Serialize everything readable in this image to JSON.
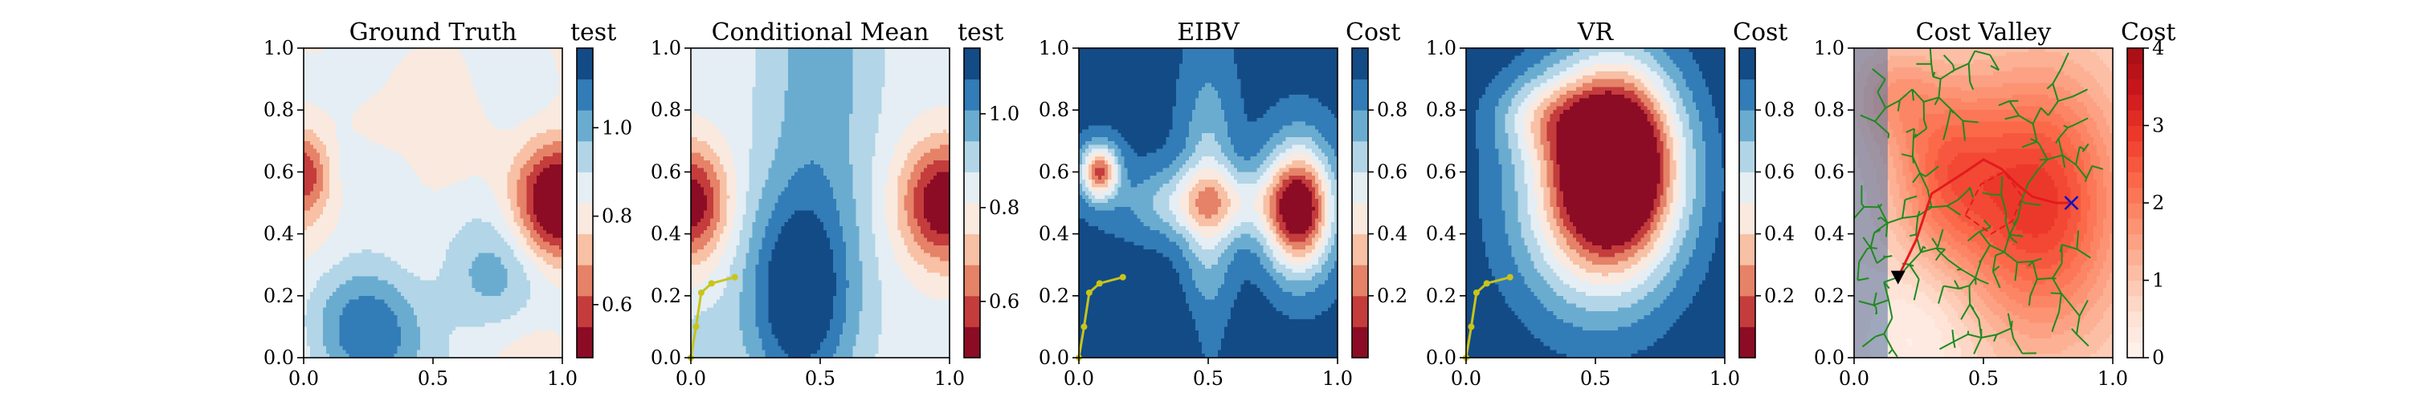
{
  "figure": {
    "panels": [
      {
        "title": "Ground Truth",
        "colorbar_title": "test",
        "colorbar_ticks": [
          "0.6",
          "0.8",
          "1.0"
        ],
        "colorbar_tick_values": [
          0.6,
          0.8,
          1.0
        ],
        "colorbar_range": [
          0.48,
          1.18
        ],
        "colormap": "RdBu",
        "field": "ground_truth",
        "path": null,
        "tree": false
      },
      {
        "title": "Conditional Mean",
        "colorbar_title": "test",
        "colorbar_ticks": [
          "0.6",
          "0.8",
          "1.0"
        ],
        "colorbar_tick_values": [
          0.6,
          0.8,
          1.0
        ],
        "colorbar_range": [
          0.48,
          1.14
        ],
        "colormap": "RdBu",
        "field": "conditional_mean",
        "path": "trajectory",
        "tree": false
      },
      {
        "title": "EIBV",
        "colorbar_title": "Cost",
        "colorbar_ticks": [
          "0.2",
          "0.4",
          "0.6",
          "0.8"
        ],
        "colorbar_tick_values": [
          0.2,
          0.4,
          0.6,
          0.8
        ],
        "colorbar_range": [
          0.0,
          1.0
        ],
        "colormap": "RdBu",
        "field": "eibv",
        "path": "trajectory",
        "tree": false
      },
      {
        "title": "VR",
        "colorbar_title": "Cost",
        "colorbar_ticks": [
          "0.2",
          "0.4",
          "0.6",
          "0.8"
        ],
        "colorbar_tick_values": [
          0.2,
          0.4,
          0.6,
          0.8
        ],
        "colorbar_range": [
          0.0,
          1.0
        ],
        "colormap": "RdBu",
        "field": "vr",
        "path": "trajectory",
        "tree": false
      },
      {
        "title": "Cost Valley",
        "colorbar_title": "Cost",
        "colorbar_ticks": [
          "0",
          "1",
          "2",
          "3",
          "4"
        ],
        "colorbar_tick_values": [
          0,
          1,
          2,
          3,
          4
        ],
        "colorbar_range": [
          0,
          4
        ],
        "colormap": "Reds",
        "field": "cost_valley",
        "path": null,
        "tree": true
      }
    ]
  },
  "chart_data": {
    "type": "heatmap",
    "count": 5,
    "xlim": [
      0,
      1
    ],
    "ylim": [
      0,
      1
    ],
    "x_ticks": [
      "0.0",
      "0.5",
      "1.0"
    ],
    "x_tick_values": [
      0.0,
      0.5,
      1.0
    ],
    "y_ticks": [
      "0.0",
      "0.2",
      "0.4",
      "0.6",
      "0.8",
      "1.0"
    ],
    "y_tick_values": [
      0.0,
      0.2,
      0.4,
      0.6,
      0.8,
      1.0
    ],
    "trajectory": [
      [
        0.0,
        0.0
      ],
      [
        0.02,
        0.1
      ],
      [
        0.04,
        0.21
      ],
      [
        0.08,
        0.24
      ],
      [
        0.17,
        0.26
      ]
    ],
    "cost_valley_markers": {
      "start": [
        0.17,
        0.26
      ],
      "target": [
        0.84,
        0.5
      ]
    },
    "cost_valley_route": [
      [
        0.17,
        0.26
      ],
      [
        0.24,
        0.38
      ],
      [
        0.3,
        0.53
      ],
      [
        0.43,
        0.6
      ],
      [
        0.5,
        0.64
      ],
      [
        0.57,
        0.61
      ],
      [
        0.63,
        0.56
      ],
      [
        0.69,
        0.52
      ],
      [
        0.78,
        0.5
      ],
      [
        0.84,
        0.5
      ]
    ],
    "cost_valley_dashed": [
      [
        0.43,
        0.46
      ],
      [
        0.53,
        0.4
      ],
      [
        0.61,
        0.44
      ],
      [
        0.65,
        0.52
      ],
      [
        0.58,
        0.6
      ],
      [
        0.49,
        0.56
      ],
      [
        0.43,
        0.46
      ]
    ]
  },
  "colors": {
    "path": "#c8c41a",
    "tree": "#1f8a1f",
    "route": "#e41a1c",
    "target": "#1010c0",
    "start": "#000000"
  }
}
